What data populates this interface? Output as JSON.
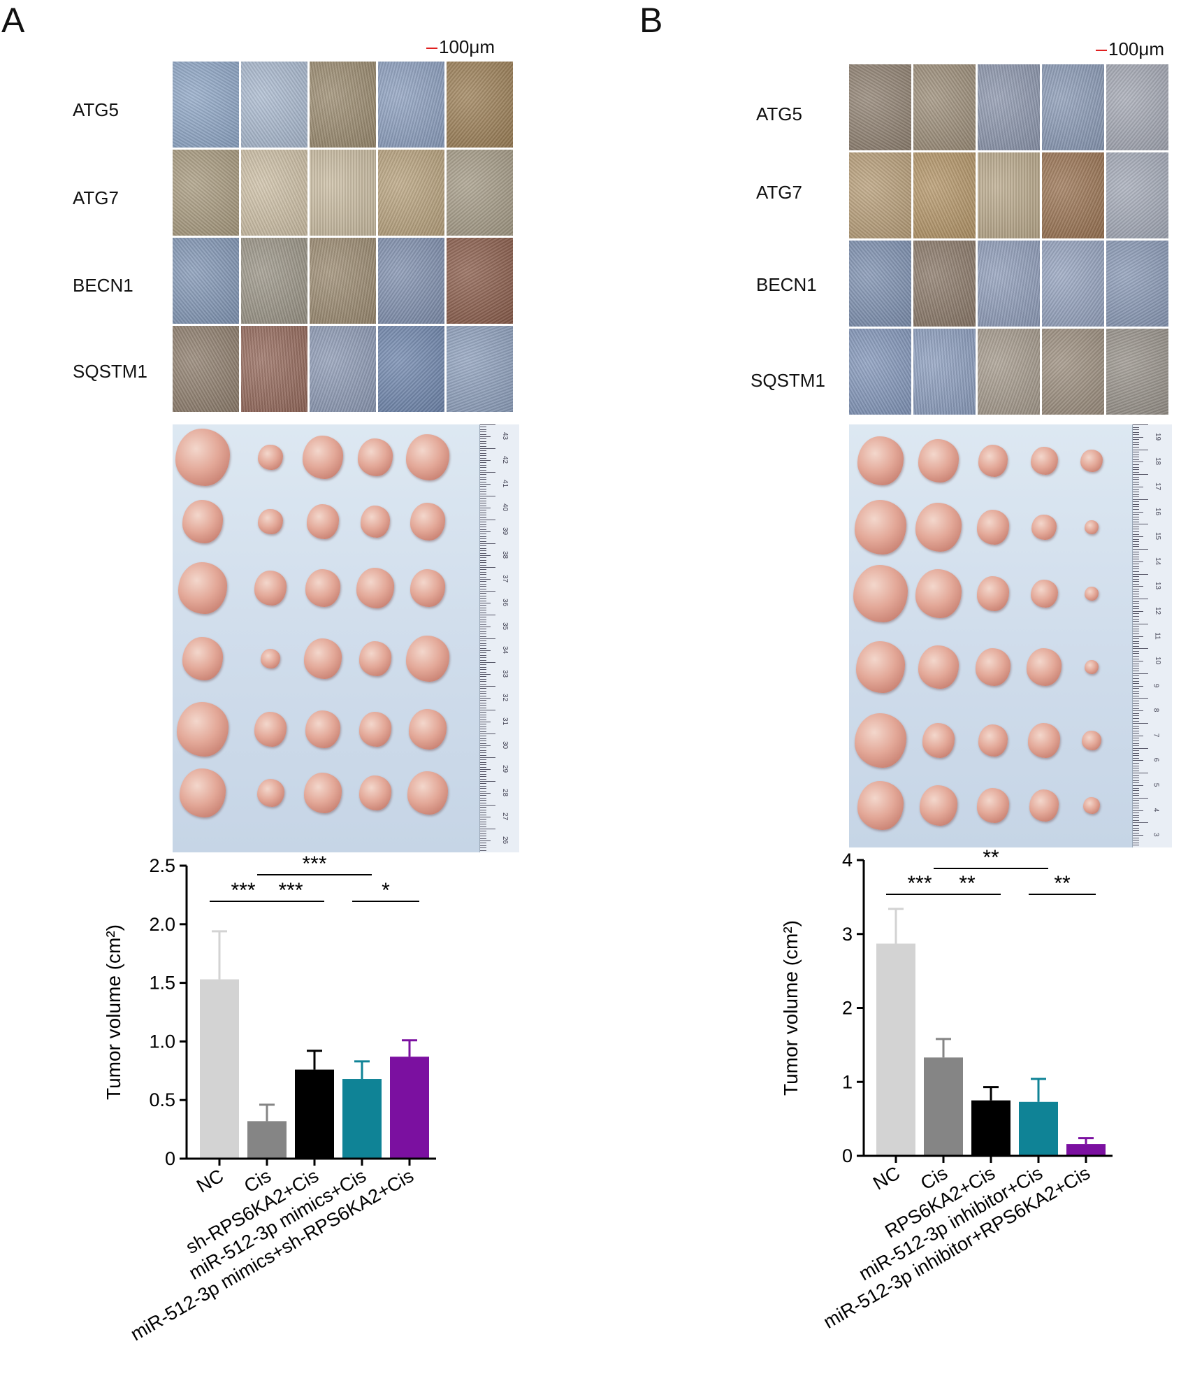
{
  "panels": {
    "A": {
      "letter": "A",
      "scale_bar": "100μm",
      "ihc_rows": [
        "ATG5",
        "ATG7",
        "BECN1",
        "SQSTM1"
      ],
      "ruler_ticks": [
        "43",
        "42",
        "41",
        "40",
        "39",
        "38",
        "37",
        "36",
        "35",
        "34",
        "33",
        "32",
        "31",
        "30",
        "29",
        "28",
        "27",
        "26"
      ]
    },
    "B": {
      "letter": "B",
      "scale_bar": "100μm",
      "ihc_rows": [
        "ATG5",
        "ATG7",
        "BECN1",
        "SQSTM1"
      ],
      "ruler_ticks": [
        "19",
        "18",
        "17",
        "16",
        "15",
        "14",
        "13",
        "12",
        "11",
        "10",
        "9",
        "8",
        "7",
        "6",
        "5",
        "4",
        "3"
      ]
    }
  },
  "colors": {
    "NC": "#d3d3d3",
    "Cis": "#858585",
    "black": "#000000",
    "teal": "#0f8396",
    "purple": "#7b10a0"
  },
  "tumor_sizes": {
    "A": [
      [
        1.0,
        0.45,
        0.75,
        0.65,
        0.8
      ],
      [
        0.75,
        0.45,
        0.6,
        0.55,
        0.65
      ],
      [
        0.9,
        0.6,
        0.65,
        0.7,
        0.65
      ],
      [
        0.75,
        0.35,
        0.7,
        0.6,
        0.8
      ],
      [
        0.95,
        0.6,
        0.65,
        0.6,
        0.7
      ],
      [
        0.85,
        0.5,
        0.7,
        0.6,
        0.75
      ]
    ],
    "B": [
      [
        0.85,
        0.75,
        0.55,
        0.5,
        0.4
      ],
      [
        0.95,
        0.85,
        0.6,
        0.45,
        0.25
      ],
      [
        1.0,
        0.85,
        0.6,
        0.5,
        0.25
      ],
      [
        0.9,
        0.75,
        0.65,
        0.65,
        0.25
      ],
      [
        0.95,
        0.6,
        0.55,
        0.6,
        0.35
      ],
      [
        0.85,
        0.7,
        0.6,
        0.55,
        0.3
      ]
    ]
  },
  "chart_data": [
    {
      "type": "bar",
      "panel": "A",
      "ylabel": "Tumor volume (cm²)",
      "ylim": [
        0,
        2.5
      ],
      "yticks": [
        "0",
        "0.5",
        "1.0",
        "1.5",
        "2.0",
        "2.5"
      ],
      "ytick_values": [
        0,
        0.5,
        1.0,
        1.5,
        2.0,
        2.5
      ],
      "categories": [
        "NC",
        "Cis",
        "sh-RPS6KA2+Cis",
        "miR-512-3p mimics+Cis",
        "miR-512-3p mimics+sh-RPS6KA2+Cis"
      ],
      "values": [
        1.53,
        0.32,
        0.76,
        0.68,
        0.87
      ],
      "errors": [
        0.41,
        0.14,
        0.16,
        0.15,
        0.14
      ],
      "bar_colors": [
        "#d3d3d3",
        "#858585",
        "#000000",
        "#0f8396",
        "#7b10a0"
      ],
      "significance": [
        {
          "from": 0,
          "to": 1,
          "label": "***",
          "level": 1
        },
        {
          "from": 1,
          "to": 2,
          "label": "***",
          "level": 1
        },
        {
          "from": 1,
          "to": 3,
          "label": "***",
          "level": 2
        },
        {
          "from": 3,
          "to": 4,
          "label": "*",
          "level": 1
        }
      ]
    },
    {
      "type": "bar",
      "panel": "B",
      "ylabel": "Tumor volume (cm²)",
      "ylim": [
        0,
        4
      ],
      "yticks": [
        "0",
        "1",
        "2",
        "3",
        "4"
      ],
      "ytick_values": [
        0,
        1,
        2,
        3,
        4
      ],
      "categories": [
        "NC",
        "Cis",
        "RPS6KA2+Cis",
        "miR-512-3p inhibitor+Cis",
        "miR-512-3p inhibitor+RPS6KA2+Cis"
      ],
      "values": [
        2.87,
        1.33,
        0.75,
        0.73,
        0.16
      ],
      "errors": [
        0.47,
        0.25,
        0.18,
        0.31,
        0.08
      ],
      "bar_colors": [
        "#d3d3d3",
        "#858585",
        "#000000",
        "#0f8396",
        "#7b10a0"
      ],
      "significance": [
        {
          "from": 0,
          "to": 1,
          "label": "***",
          "level": 1
        },
        {
          "from": 1,
          "to": 2,
          "label": "**",
          "level": 1
        },
        {
          "from": 1,
          "to": 3,
          "label": "**",
          "level": 2
        },
        {
          "from": 3,
          "to": 4,
          "label": "**",
          "level": 1
        }
      ]
    }
  ]
}
